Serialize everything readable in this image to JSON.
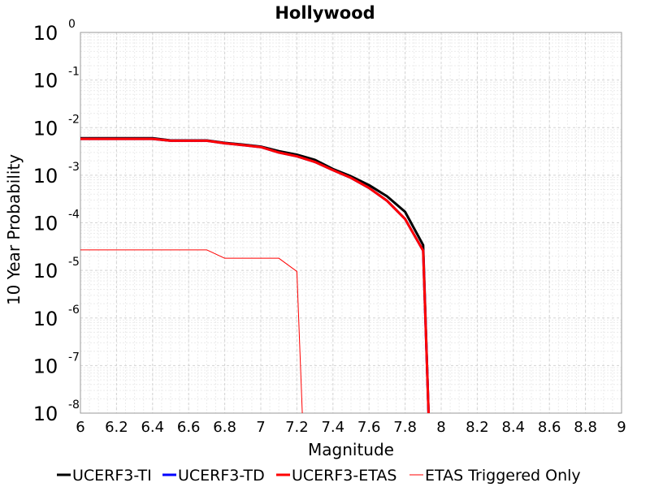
{
  "chart_data": {
    "type": "line",
    "title": "Hollywood",
    "xlabel": "Magnitude",
    "ylabel": "10 Year Probability",
    "xlim": [
      6,
      9
    ],
    "ylim": [
      1e-08,
      1
    ],
    "yscale": "log",
    "grid": true,
    "legend_position": "bottom",
    "x_ticks": [
      "6",
      "6.2",
      "6.4",
      "6.6",
      "6.8",
      "7",
      "7.2",
      "7.4",
      "7.6",
      "7.8",
      "8",
      "8.2",
      "8.4",
      "8.6",
      "8.8",
      "9"
    ],
    "y_ticks": [
      {
        "base": "10",
        "exp": "0"
      },
      {
        "base": "10",
        "exp": "-1"
      },
      {
        "base": "10",
        "exp": "-2"
      },
      {
        "base": "10",
        "exp": "-3"
      },
      {
        "base": "10",
        "exp": "-4"
      },
      {
        "base": "10",
        "exp": "-5"
      },
      {
        "base": "10",
        "exp": "-6"
      },
      {
        "base": "10",
        "exp": "-7"
      },
      {
        "base": "10",
        "exp": "-8"
      }
    ],
    "series": [
      {
        "name": "UCERF3-TI",
        "color": "#000000",
        "width": 3,
        "points": [
          [
            6.0,
            0.006
          ],
          [
            6.1,
            0.006
          ],
          [
            6.2,
            0.006
          ],
          [
            6.3,
            0.006
          ],
          [
            6.4,
            0.006
          ],
          [
            6.5,
            0.0054
          ],
          [
            6.6,
            0.0054
          ],
          [
            6.7,
            0.0054
          ],
          [
            6.8,
            0.0048
          ],
          [
            6.9,
            0.0044
          ],
          [
            7.0,
            0.004
          ],
          [
            7.1,
            0.0032
          ],
          [
            7.2,
            0.0027
          ],
          [
            7.3,
            0.0021
          ],
          [
            7.4,
            0.00135
          ],
          [
            7.5,
            0.00095
          ],
          [
            7.6,
            0.00062
          ],
          [
            7.7,
            0.00036
          ],
          [
            7.8,
            0.00017
          ],
          [
            7.9,
            3.4e-05
          ],
          [
            7.93,
            1e-08
          ]
        ]
      },
      {
        "name": "UCERF3-TD",
        "color": "#0000ff",
        "width": 3,
        "points": [
          [
            6.0,
            0.0058
          ],
          [
            6.1,
            0.0058
          ],
          [
            6.2,
            0.0058
          ],
          [
            6.3,
            0.0058
          ],
          [
            6.4,
            0.0058
          ],
          [
            6.5,
            0.0053
          ],
          [
            6.6,
            0.0053
          ],
          [
            6.7,
            0.0053
          ],
          [
            6.8,
            0.0047
          ],
          [
            6.9,
            0.0043
          ],
          [
            7.0,
            0.0039
          ],
          [
            7.1,
            0.003
          ],
          [
            7.2,
            0.0025
          ],
          [
            7.3,
            0.0019
          ],
          [
            7.4,
            0.00128
          ],
          [
            7.5,
            0.00088
          ],
          [
            7.6,
            0.00054
          ],
          [
            7.7,
            0.00029
          ],
          [
            7.8,
            0.00012
          ],
          [
            7.9,
            2.6e-05
          ],
          [
            7.93,
            1e-08
          ]
        ]
      },
      {
        "name": "UCERF3-ETAS",
        "color": "#ff0000",
        "width": 3,
        "points": [
          [
            6.0,
            0.0058
          ],
          [
            6.1,
            0.0058
          ],
          [
            6.2,
            0.0058
          ],
          [
            6.3,
            0.0058
          ],
          [
            6.4,
            0.0058
          ],
          [
            6.5,
            0.0053
          ],
          [
            6.6,
            0.0053
          ],
          [
            6.7,
            0.0053
          ],
          [
            6.8,
            0.0047
          ],
          [
            6.9,
            0.0043
          ],
          [
            7.0,
            0.0039
          ],
          [
            7.1,
            0.003
          ],
          [
            7.2,
            0.0025
          ],
          [
            7.3,
            0.0019
          ],
          [
            7.4,
            0.00128
          ],
          [
            7.5,
            0.00088
          ],
          [
            7.6,
            0.00054
          ],
          [
            7.7,
            0.00029
          ],
          [
            7.8,
            0.00012
          ],
          [
            7.9,
            2.6e-05
          ],
          [
            7.93,
            1e-08
          ]
        ]
      },
      {
        "name": "ETAS Triggered Only",
        "color": "#ff0000",
        "width": 1,
        "points": [
          [
            6.0,
            2.7e-05
          ],
          [
            6.7,
            2.7e-05
          ],
          [
            6.8,
            1.8e-05
          ],
          [
            7.1,
            1.8e-05
          ],
          [
            7.2,
            9.5e-06
          ],
          [
            7.23,
            1e-08
          ]
        ]
      }
    ]
  }
}
